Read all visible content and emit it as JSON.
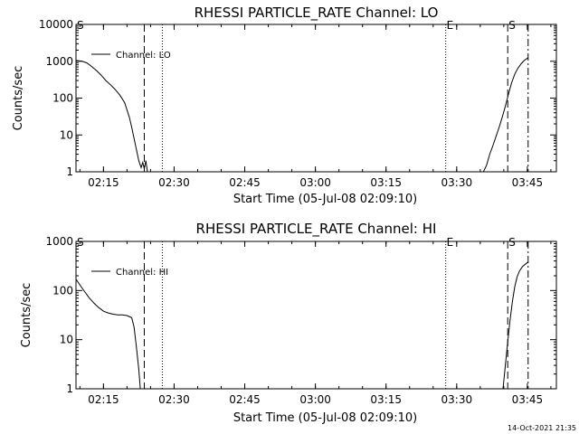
{
  "footer": {
    "timestamp": "14-Oct-2021 21:35"
  },
  "chart_data": [
    {
      "type": "line",
      "title": "RHESSI PARTICLE_RATE Channel: LO",
      "xlabel": "Start Time (05-Jul-08 02:09:10)",
      "ylabel": "Counts/sec",
      "yscale": "log",
      "ylim": [
        1,
        10000
      ],
      "xlim": [
        "02:09:10",
        "03:51:10"
      ],
      "x_ticks": [
        "02:15",
        "02:30",
        "02:45",
        "03:00",
        "03:15",
        "03:30",
        "03:45"
      ],
      "y_ticks": [
        "1",
        "10",
        "100",
        "1000",
        "10000"
      ],
      "legend": {
        "label": "Channel: LO",
        "position": "top-left"
      },
      "markers": [
        {
          "label": "S",
          "time": "02:09:10",
          "style": "solid"
        },
        {
          "time": "02:23:40",
          "style": "dashed"
        },
        {
          "time": "02:27:30",
          "style": "dotted"
        },
        {
          "label": "E",
          "time": "03:27:40",
          "style": "dotted"
        },
        {
          "label": "S",
          "time": "03:40:50",
          "style": "dashed"
        },
        {
          "time": "03:45:10",
          "style": "dashdot"
        }
      ],
      "series": [
        {
          "name": "Channel: LO",
          "segments": [
            {
              "x": [
                "02:09:10",
                "02:10:30",
                "02:11:30",
                "02:12:30",
                "02:13:30",
                "02:14:30",
                "02:15:30",
                "02:16:30",
                "02:17:30",
                "02:18:30",
                "02:19:30",
                "02:20:30",
                "02:21:00",
                "02:21:30",
                "02:22:00",
                "02:22:30",
                "02:23:00",
                "02:23:20",
                "02:23:40",
                "02:24:00",
                "02:24:20"
              ],
              "y": [
                1050,
                1000,
                900,
                720,
                560,
                420,
                300,
                230,
                170,
                120,
                75,
                30,
                16,
                8,
                4,
                2,
                1.3,
                1.8,
                1.2,
                2,
                1
              ]
            },
            {
              "x": [
                "03:35:40",
                "03:36:20",
                "03:37:00",
                "03:37:40",
                "03:38:20",
                "03:39:00",
                "03:39:40",
                "03:40:20",
                "03:41:00",
                "03:41:40",
                "03:42:20",
                "03:43:00",
                "03:43:40",
                "03:44:20",
                "03:45:10"
              ],
              "y": [
                1,
                1.5,
                3,
                5,
                9,
                16,
                30,
                60,
                130,
                260,
                450,
                650,
                850,
                1050,
                1250
              ]
            }
          ]
        }
      ]
    },
    {
      "type": "line",
      "title": "RHESSI PARTICLE_RATE Channel: HI",
      "xlabel": "Start Time (05-Jul-08 02:09:10)",
      "ylabel": "Counts/sec",
      "yscale": "log",
      "ylim": [
        1,
        1000
      ],
      "xlim": [
        "02:09:10",
        "03:51:10"
      ],
      "x_ticks": [
        "02:15",
        "02:30",
        "02:45",
        "03:00",
        "03:15",
        "03:30",
        "03:45"
      ],
      "y_ticks": [
        "1",
        "10",
        "100",
        "1000"
      ],
      "legend": {
        "label": "Channel: HI",
        "position": "top-left"
      },
      "markers": [
        {
          "label": "S",
          "time": "02:09:10",
          "style": "solid"
        },
        {
          "time": "02:23:40",
          "style": "dashed"
        },
        {
          "time": "02:27:30",
          "style": "dotted"
        },
        {
          "label": "E",
          "time": "03:27:40",
          "style": "dotted"
        },
        {
          "label": "S",
          "time": "03:40:50",
          "style": "dashed"
        },
        {
          "time": "03:45:10",
          "style": "dashdot"
        }
      ],
      "series": [
        {
          "name": "Channel: HI",
          "segments": [
            {
              "x": [
                "02:09:10",
                "02:10:00",
                "02:11:00",
                "02:12:00",
                "02:13:00",
                "02:14:00",
                "02:15:00",
                "02:16:00",
                "02:17:00",
                "02:18:00",
                "02:19:00",
                "02:20:00",
                "02:21:00",
                "02:21:30",
                "02:22:00",
                "02:22:30",
                "02:22:50"
              ],
              "y": [
                170,
                130,
                95,
                70,
                55,
                45,
                38,
                35,
                33,
                32,
                32,
                31,
                28,
                18,
                7,
                2.5,
                1
              ]
            },
            {
              "x": [
                "03:39:50",
                "03:40:20",
                "03:40:50",
                "03:41:20",
                "03:41:50",
                "03:42:20",
                "03:42:50",
                "03:43:20",
                "03:44:00",
                "03:44:40",
                "03:45:10"
              ],
              "y": [
                1,
                3,
                9,
                25,
                60,
                120,
                190,
                250,
                310,
                350,
                380
              ]
            }
          ]
        }
      ]
    }
  ]
}
